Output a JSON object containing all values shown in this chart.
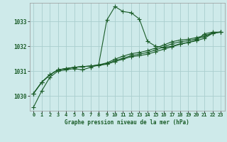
{
  "title": "Graphe pression niveau de la mer (hPa)",
  "bg_color": "#ceeaea",
  "grid_color": "#aacece",
  "line_color": "#1a5c28",
  "x_ticks": [
    0,
    1,
    2,
    3,
    4,
    5,
    6,
    7,
    8,
    9,
    10,
    11,
    12,
    13,
    14,
    15,
    16,
    17,
    18,
    19,
    20,
    21,
    22,
    23
  ],
  "ylim": [
    1029.4,
    1033.75
  ],
  "yticks": [
    1030,
    1031,
    1032,
    1033
  ],
  "series1": [
    1029.55,
    1030.2,
    1030.75,
    1031.0,
    1031.05,
    1031.1,
    1031.05,
    1031.15,
    1031.25,
    1033.05,
    1033.6,
    1033.4,
    1033.35,
    1033.1,
    1032.2,
    1032.0,
    1031.95,
    1032.0,
    1032.1,
    1032.15,
    1032.25,
    1032.5,
    1032.57,
    1032.57
  ],
  "series2": [
    1030.1,
    1030.55,
    1030.85,
    1031.05,
    1031.1,
    1031.15,
    1031.18,
    1031.2,
    1031.22,
    1031.28,
    1031.38,
    1031.48,
    1031.58,
    1031.62,
    1031.68,
    1031.78,
    1031.88,
    1031.98,
    1032.08,
    1032.15,
    1032.22,
    1032.32,
    1032.52,
    1032.57
  ],
  "series3": [
    1030.1,
    1030.55,
    1030.85,
    1031.05,
    1031.1,
    1031.15,
    1031.18,
    1031.2,
    1031.25,
    1031.3,
    1031.42,
    1031.52,
    1031.62,
    1031.68,
    1031.75,
    1031.85,
    1031.97,
    1032.1,
    1032.18,
    1032.22,
    1032.3,
    1032.38,
    1032.53,
    1032.57
  ],
  "series4": [
    1030.1,
    1030.55,
    1030.85,
    1031.05,
    1031.1,
    1031.15,
    1031.18,
    1031.2,
    1031.25,
    1031.33,
    1031.48,
    1031.6,
    1031.7,
    1031.75,
    1031.82,
    1031.93,
    1032.05,
    1032.18,
    1032.25,
    1032.28,
    1032.35,
    1032.42,
    1032.54,
    1032.57
  ],
  "marker_size": 2.0,
  "linewidth": 0.8,
  "tick_fontsize": 5.0,
  "xlabel_fontsize": 5.5,
  "ytick_fontsize": 5.5
}
